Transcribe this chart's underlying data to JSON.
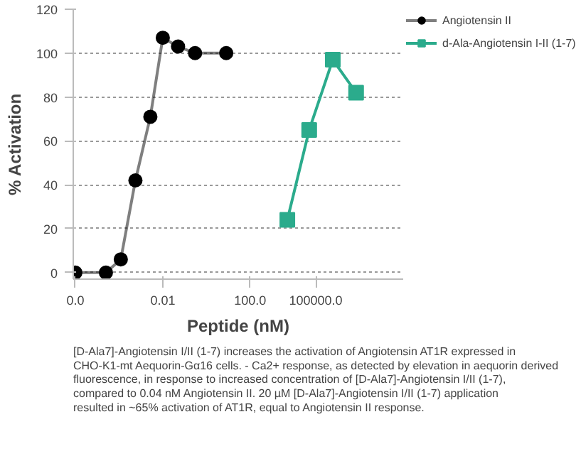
{
  "chart_data": {
    "type": "line",
    "xlabel": "Peptide (nM)",
    "ylabel": "% Activation",
    "log": "x",
    "xlim": [
      8e-07,
      1000000000.0
    ],
    "xticks": [
      {
        "value": 1e-06,
        "label": "0.0"
      },
      0.01,
      {
        "value": 100,
        "label": "100.0"
      },
      {
        "value": 100000,
        "label": "100000.0"
      }
    ],
    "ylim": [
      -3,
      120
    ],
    "yticks": [
      0,
      20,
      40,
      60,
      80,
      100,
      120
    ],
    "grid": "y",
    "legend": "top right",
    "series": [
      {
        "name": "Angiotensin II",
        "color": "#000000",
        "marker": "circle",
        "x": [
          1e-06,
          2.5e-05,
          0.00012,
          0.00056,
          0.0027,
          0.01,
          0.05,
          0.3,
          8
        ],
        "values": [
          0,
          0,
          6,
          42,
          71,
          107,
          103,
          100,
          100
        ]
      },
      {
        "name": "d-Ala-Angiotensin I-II (1-7)",
        "color": "#2bab8c",
        "marker": "square",
        "x": [
          5000,
          50000,
          600000,
          7000000
        ],
        "values": [
          24,
          65,
          97,
          82
        ]
      }
    ],
    "annotations": [
      "[D-Ala7]-Angiotensin I/II (1-7) increases the activation of Angiotensin AT1R expressed in CHO-K1-mt Aequorin-Gα16 cells. - Ca2+ response, as detected by elevation in aequorin derived fluorescence, in response to increased concentration of [D-Ala7]-Angiotensin I/II (1-7), compared to 0.04 nM Angiotensin II. 20 µM [D-Ala7]-Angiotensin I/II (1-7) application resulted in ~65% activation of AT1R, equal to Angiotensin II response."
    ]
  }
}
